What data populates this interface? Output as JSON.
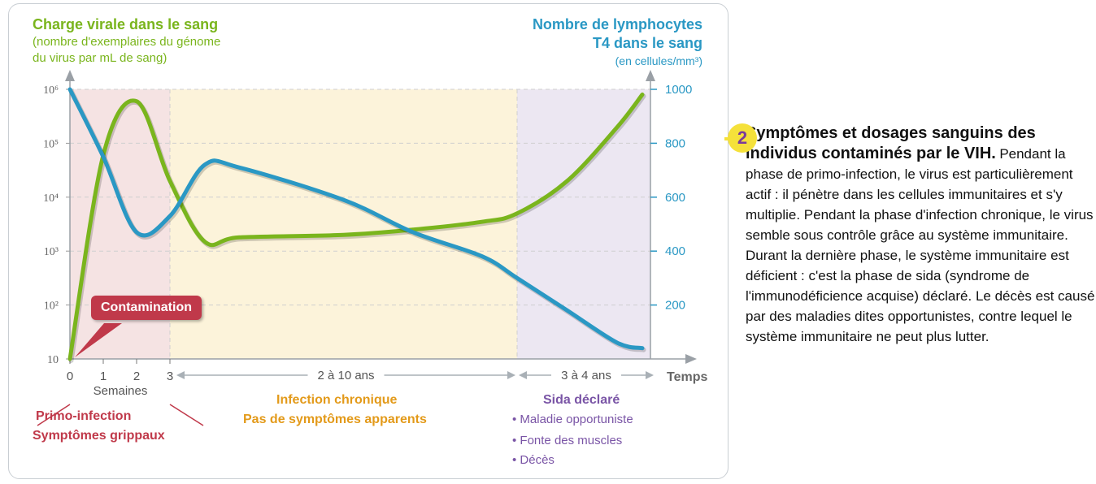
{
  "chart_data": {
    "type": "line",
    "left_axis": {
      "title": "Charge virale dans le sang",
      "subtitle_line1": "(nombre d'exemplaires du génome",
      "subtitle_line2": "du virus par mL de sang)",
      "scale": "log",
      "ticks": [
        "10",
        "10²",
        "10³",
        "10⁴",
        "10⁵",
        "10⁶"
      ],
      "range": [
        10,
        1000000
      ]
    },
    "right_axis": {
      "title_line1": "Nombre de lymphocytes",
      "title_line2": "T4 dans le sang",
      "subtitle": "(en cellules/mm³)",
      "ticks": [
        "200",
        "400",
        "600",
        "800",
        "1000"
      ],
      "range": [
        0,
        1000
      ]
    },
    "x_axis": {
      "label": "Temps",
      "ticks": [
        "0",
        "1",
        "2",
        "3"
      ],
      "unit_label": "Semaines",
      "span_chronic": "2 à 10 ans",
      "span_sida": "3 à 4 ans"
    },
    "series": [
      {
        "name": "Charge virale dans le sang",
        "color": "#7ab51d",
        "axis": "left",
        "points": [
          [
            0,
            10
          ],
          [
            1,
            60000
          ],
          [
            2,
            600000
          ],
          [
            3,
            20000
          ],
          [
            4,
            1500
          ],
          [
            5,
            1800
          ],
          [
            8,
            2000
          ],
          [
            10,
            2500
          ],
          [
            12,
            3500
          ],
          [
            13,
            5000
          ],
          [
            15,
            20000
          ],
          [
            17,
            200000
          ],
          [
            18,
            800000
          ]
        ]
      },
      {
        "name": "Nombre de lymphocytes T4 dans le sang",
        "color": "#2a98c4",
        "axis": "right",
        "points": [
          [
            0,
            1000
          ],
          [
            1,
            750
          ],
          [
            2,
            470
          ],
          [
            3,
            530
          ],
          [
            4,
            720
          ],
          [
            5,
            710
          ],
          [
            8,
            590
          ],
          [
            10,
            470
          ],
          [
            12,
            380
          ],
          [
            13,
            300
          ],
          [
            15,
            180
          ],
          [
            17,
            60
          ],
          [
            18,
            40
          ]
        ]
      }
    ],
    "phases": [
      {
        "name": "Primo-infection",
        "detail": "Symptômes grippaux",
        "color": "#c0394a",
        "x_range": [
          0,
          3
        ]
      },
      {
        "name": "Infection chronique",
        "detail": "Pas de symptômes apparents",
        "color": "#e39a1a",
        "x_range": [
          3,
          13
        ]
      },
      {
        "name": "Sida déclaré",
        "items": [
          "• Maladie opportuniste",
          "• Fonte des muscles",
          "• Décès"
        ],
        "color": "#7a55a6",
        "x_range": [
          13,
          18
        ]
      }
    ],
    "annotation": "Contamination"
  },
  "caption": {
    "number": "2",
    "title": "Symptômes et dosages sanguins des individus contaminés par le VIH.",
    "body": "Pendant la phase de primo-infection, le virus est particulièrement actif : il pénètre dans les cellules immunitaires et s'y multiplie. Pendant la phase d'infection chronique, le virus semble sous contrôle grâce au système immunitaire. Durant la dernière phase, le système immunitaire est déficient : c'est la phase de sida (syndrome de l'immunodéficience acquise) déclaré. Le décès est causé par des maladies dites opportunistes, contre lequel le système immunitaire ne peut plus lutter."
  }
}
